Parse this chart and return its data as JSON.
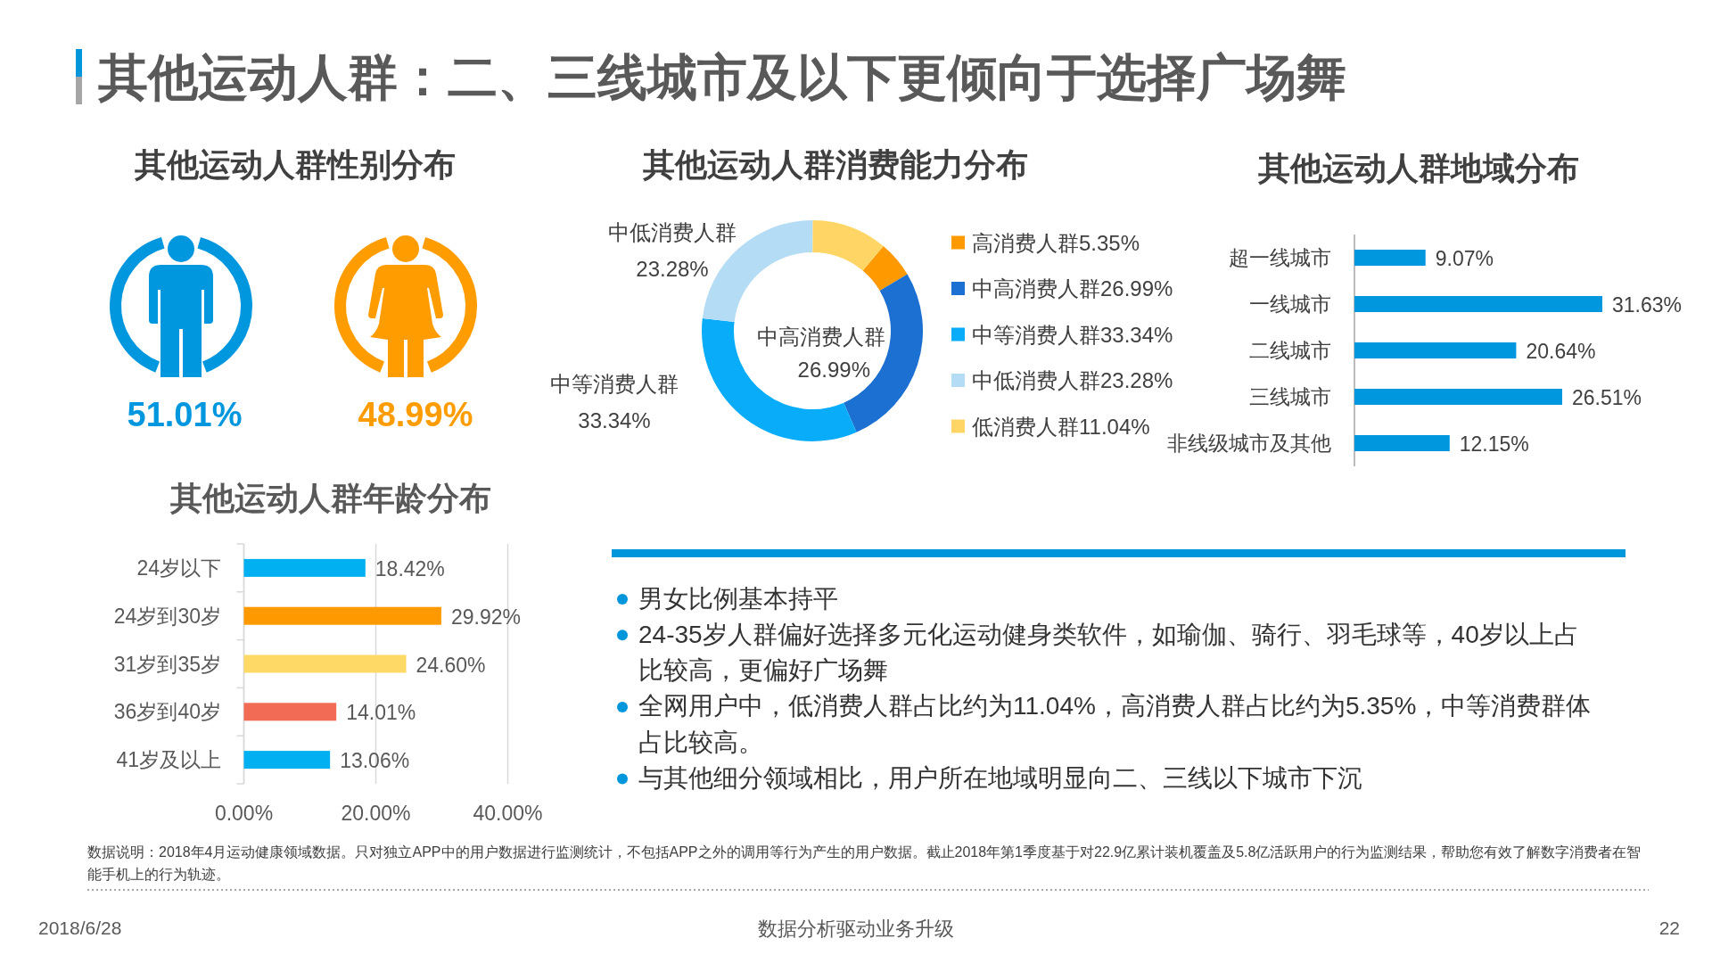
{
  "chart_data": [
    {
      "type": "other",
      "title": "其他运动人群：二、三线城市及以下更倾向于选择广场舞",
      "annotations": [
        "数据说明：2018年4月运动健康领域数据。只对独立APP中的用户数据进行监测统计，不包括APP之外的调用等行为产生的用户数据。截止2018年第1季度基于对22.9亿累计装机覆盖及5.8亿活跃用户的行为监测结果，帮助您有效了解数字消费者在智能手机上的行为轨迹。",
        "2018/6/28",
        "数据分析驱动业务升级",
        "22"
      ]
    },
    {
      "type": "other",
      "title": "其他运动人群性别分布",
      "values": [
        51.01,
        48.99
      ],
      "value_labels": [
        "51.01%",
        "48.99%"
      ],
      "colors": [
        "#0097df",
        "#ff9c00"
      ]
    },
    {
      "type": "donut",
      "title": "其他运动人群消费能力分布",
      "categories": [
        "高消费人群",
        "中高消费人群",
        "中等消费人群",
        "中低消费人群",
        "低消费人群"
      ],
      "values": [
        5.35,
        26.99,
        33.34,
        23.28,
        11.04
      ],
      "value_labels": [
        "5.35%",
        "26.99%",
        "33.34%",
        "23.28%",
        "11.04%"
      ],
      "colors": [
        "#ff9900",
        "#1c70d2",
        "#09acf8",
        "#b4dcf4",
        "#ffd666"
      ],
      "legend": "right",
      "annotations": [
        "中低消费人群",
        "23.28%",
        "中等消费人群",
        "33.34%",
        "中高消费人群",
        "26.99%"
      ]
    },
    {
      "type": "bar",
      "orientation": "horizontal",
      "title": "其他运动人群地域分布",
      "categories": [
        "超一线城市",
        "一线城市",
        "二线城市",
        "三线城市",
        "非线级城市及其他"
      ],
      "values": [
        9.07,
        31.63,
        20.64,
        26.51,
        12.15
      ],
      "value_labels": [
        "9.07%",
        "31.63%",
        "20.64%",
        "26.51%",
        "12.15%"
      ],
      "color": "#0097de"
    },
    {
      "type": "bar",
      "orientation": "horizontal",
      "title": "其他运动人群年龄分布",
      "categories": [
        "24岁以下",
        "24岁到30岁",
        "31岁到35岁",
        "36岁到40岁",
        "41岁及以上"
      ],
      "values": [
        18.42,
        29.92,
        24.6,
        14.01,
        13.06
      ],
      "value_labels": [
        "18.42%",
        "29.92%",
        "24.60%",
        "14.01%",
        "13.06%"
      ],
      "colors": [
        "#00b0f0",
        "#ff9900",
        "#ffd966",
        "#f26b54",
        "#00b0f0"
      ],
      "xlim": [
        0,
        40
      ],
      "xticks": [
        {
          "value": 0,
          "label": "0.00%"
        },
        {
          "value": 20,
          "label": "20.00%"
        },
        {
          "value": 40,
          "label": "40.00%"
        }
      ],
      "grid": "x"
    },
    {
      "type": "other",
      "annotations": [
        "男女比例基本持平",
        "24-35岁人群偏好选择多元化运动健身类软件，如瑜伽、骑行、羽毛球等，40岁以上占比较高，更偏好广场舞",
        "全网用户中，低消费人群占比约为11.04%，高消费人群占比约为5.35%，中等消费群体占比较高。",
        "与其他细分领域相比，用户所在地域明显向二、三线以下城市下沉"
      ]
    }
  ]
}
